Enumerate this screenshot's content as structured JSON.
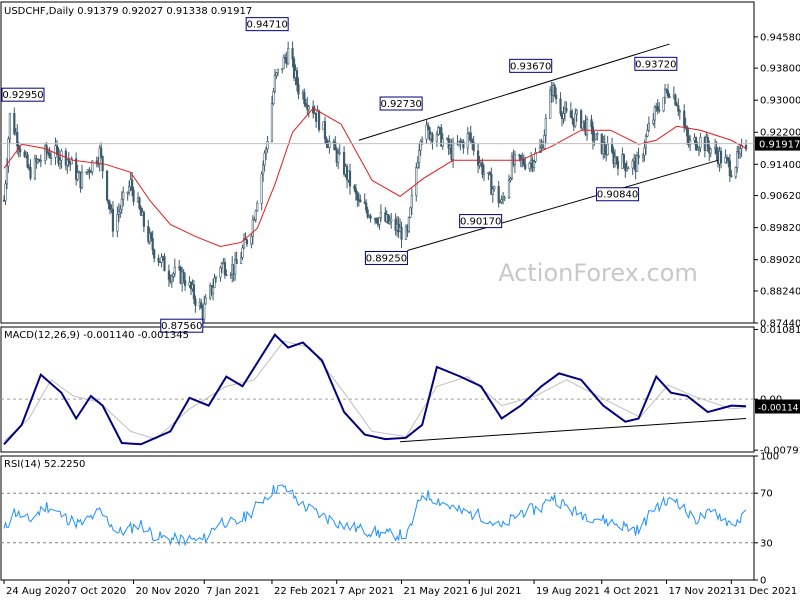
{
  "chart_data": [
    {
      "type": "candlestick",
      "panel": "price",
      "header": "USDCHF,Daily  0.91379 0.92027 0.91338 0.91917",
      "ylim": [
        0.8744,
        0.9545
      ],
      "y_ticks": [
        "0.94580",
        "0.93800",
        "0.93000",
        "0.92200",
        "0.91400",
        "0.90620",
        "0.89820",
        "0.89020",
        "0.88240",
        "0.87440"
      ],
      "last_price": "0.91917",
      "watermark": "ActionForex.com",
      "price_labels": [
        {
          "text": "0.92950",
          "date": "2020-08-26",
          "value": 0.9295
        },
        {
          "text": "0.94710",
          "date": "2021-03-05",
          "value": 0.9471
        },
        {
          "text": "0.87560",
          "date": "2021-01-06",
          "value": 0.8756
        },
        {
          "text": "0.92730",
          "date": "2021-06-04",
          "value": 0.9273
        },
        {
          "text": "0.89250",
          "date": "2021-05-25",
          "value": 0.8925
        },
        {
          "text": "0.90170",
          "date": "2021-07-28",
          "value": 0.9017
        },
        {
          "text": "0.93670",
          "date": "2021-08-31",
          "value": 0.9367
        },
        {
          "text": "0.90840",
          "date": "2021-10-29",
          "value": 0.9084
        },
        {
          "text": "0.93720",
          "date": "2021-11-24",
          "value": 0.9372
        }
      ],
      "channel_upper": [
        [
          "2021-04-22",
          0.92
        ],
        [
          "2021-11-19",
          0.944
        ]
      ],
      "channel_lower": [
        [
          "2021-05-25",
          0.8925
        ],
        [
          "2021-12-22",
          0.915
        ]
      ],
      "colors": {
        "candles": "#3d5a6b",
        "moving_average": "#e31a1c",
        "trendline": "#000000",
        "label_border": "#000080",
        "last_price_bg": "#000000"
      },
      "close_path": [
        [
          "2020-08-24",
          0.905
        ],
        [
          "2020-08-28",
          0.926
        ],
        [
          "2020-09-10",
          0.912
        ],
        [
          "2020-09-22",
          0.917
        ],
        [
          "2020-10-05",
          0.916
        ],
        [
          "2020-10-15",
          0.91
        ],
        [
          "2020-10-28",
          0.917
        ],
        [
          "2020-11-06",
          0.899
        ],
        [
          "2020-11-18",
          0.909
        ],
        [
          "2020-11-26",
          0.9
        ],
        [
          "2020-12-03",
          0.893
        ],
        [
          "2020-12-14",
          0.887
        ],
        [
          "2020-12-24",
          0.886
        ],
        [
          "2021-01-06",
          0.877
        ],
        [
          "2021-01-18",
          0.889
        ],
        [
          "2021-01-28",
          0.888
        ],
        [
          "2021-02-08",
          0.898
        ],
        [
          "2021-02-18",
          0.918
        ],
        [
          "2021-02-24",
          0.935
        ],
        [
          "2021-03-05",
          0.942
        ],
        [
          "2021-03-12",
          0.933
        ],
        [
          "2021-03-22",
          0.928
        ],
        [
          "2021-04-01",
          0.92
        ],
        [
          "2021-04-12",
          0.913
        ],
        [
          "2021-04-22",
          0.904
        ],
        [
          "2021-05-04",
          0.901
        ],
        [
          "2021-05-14",
          0.899
        ],
        [
          "2021-05-25",
          0.896
        ],
        [
          "2021-06-03",
          0.922
        ],
        [
          "2021-06-14",
          0.922
        ],
        [
          "2021-06-24",
          0.917
        ],
        [
          "2021-07-06",
          0.921
        ],
        [
          "2021-07-16",
          0.912
        ],
        [
          "2021-07-28",
          0.904
        ],
        [
          "2021-08-04",
          0.914
        ],
        [
          "2021-08-17",
          0.915
        ],
        [
          "2021-08-24",
          0.918
        ],
        [
          "2021-08-31",
          0.933
        ],
        [
          "2021-09-09",
          0.926
        ],
        [
          "2021-09-20",
          0.925
        ],
        [
          "2021-09-30",
          0.92
        ],
        [
          "2021-10-11",
          0.916
        ],
        [
          "2021-10-21",
          0.914
        ],
        [
          "2021-10-29",
          0.914
        ],
        [
          "2021-11-05",
          0.923
        ],
        [
          "2021-11-12",
          0.929
        ],
        [
          "2021-11-19",
          0.933
        ],
        [
          "2021-11-24",
          0.93
        ],
        [
          "2021-12-02",
          0.919
        ],
        [
          "2021-12-10",
          0.92
        ],
        [
          "2021-12-20",
          0.917
        ],
        [
          "2021-12-31",
          0.913
        ],
        [
          "2022-01-06",
          0.916
        ],
        [
          "2022-01-10",
          0.9192
        ]
      ],
      "ma_path": [
        [
          "2020-08-24",
          0.913
        ],
        [
          "2020-09-05",
          0.919
        ],
        [
          "2020-09-20",
          0.918
        ],
        [
          "2020-10-10",
          0.915
        ],
        [
          "2020-11-01",
          0.914
        ],
        [
          "2020-11-18",
          0.912
        ],
        [
          "2020-12-01",
          0.905
        ],
        [
          "2020-12-15",
          0.899
        ],
        [
          "2021-01-01",
          0.896
        ],
        [
          "2021-01-18",
          0.8935
        ],
        [
          "2021-02-01",
          0.8945
        ],
        [
          "2021-02-12",
          0.898
        ],
        [
          "2021-02-24",
          0.909
        ],
        [
          "2021-03-08",
          0.922
        ],
        [
          "2021-03-22",
          0.928
        ],
        [
          "2021-04-10",
          0.924
        ],
        [
          "2021-05-01",
          0.91
        ],
        [
          "2021-05-20",
          0.906
        ],
        [
          "2021-06-05",
          0.9105
        ],
        [
          "2021-06-25",
          0.915
        ],
        [
          "2021-07-20",
          0.915
        ],
        [
          "2021-08-10",
          0.915
        ],
        [
          "2021-08-31",
          0.9185
        ],
        [
          "2021-09-20",
          0.9225
        ],
        [
          "2021-10-10",
          0.9225
        ],
        [
          "2021-10-29",
          0.919
        ],
        [
          "2021-11-10",
          0.92
        ],
        [
          "2021-11-24",
          0.9235
        ],
        [
          "2021-12-10",
          0.9225
        ],
        [
          "2021-12-31",
          0.92
        ],
        [
          "2022-01-10",
          0.918
        ]
      ]
    },
    {
      "type": "line",
      "panel": "macd",
      "header": "MACD(12,26,9) -0.001140 -0.001345",
      "ylim": [
        -0.0082,
        0.0112
      ],
      "y_ticks": [
        "0.010814",
        "0.00",
        "-0.00791"
      ],
      "last_values": [
        "-0.00114",
        "-0.00134"
      ],
      "colors": {
        "macd": "#000080",
        "signal": "#c0c0c0",
        "trendline": "#000000"
      },
      "trendline": [
        [
          "2021-05-20",
          -0.0066
        ],
        [
          "2022-01-10",
          -0.003
        ]
      ],
      "macd_path": [
        [
          "2020-08-24",
          -0.007
        ],
        [
          "2020-09-05",
          -0.004
        ],
        [
          "2020-09-18",
          0.0038
        ],
        [
          "2020-10-02",
          0.001
        ],
        [
          "2020-10-12",
          -0.003
        ],
        [
          "2020-10-22",
          0.0005
        ],
        [
          "2020-10-30",
          -0.001
        ],
        [
          "2020-11-12",
          -0.0068
        ],
        [
          "2020-11-25",
          -0.007
        ],
        [
          "2020-12-05",
          -0.006
        ],
        [
          "2020-12-15",
          -0.005
        ],
        [
          "2020-12-28",
          0.0002
        ],
        [
          "2021-01-10",
          -0.001
        ],
        [
          "2021-01-22",
          0.0035
        ],
        [
          "2021-02-02",
          0.002
        ],
        [
          "2021-02-24",
          0.01
        ],
        [
          "2021-03-05",
          0.008
        ],
        [
          "2021-03-15",
          0.0088
        ],
        [
          "2021-03-28",
          0.006
        ],
        [
          "2021-04-12",
          -0.002
        ],
        [
          "2021-04-26",
          -0.0055
        ],
        [
          "2021-05-10",
          -0.0062
        ],
        [
          "2021-05-24",
          -0.006
        ],
        [
          "2021-06-04",
          -0.004
        ],
        [
          "2021-06-14",
          0.005
        ],
        [
          "2021-06-30",
          0.0035
        ],
        [
          "2021-07-14",
          0.002
        ],
        [
          "2021-07-28",
          -0.003
        ],
        [
          "2021-08-10",
          -0.001
        ],
        [
          "2021-08-24",
          0.002
        ],
        [
          "2021-09-05",
          0.004
        ],
        [
          "2021-09-20",
          0.003
        ],
        [
          "2021-10-05",
          -0.001
        ],
        [
          "2021-10-20",
          -0.0035
        ],
        [
          "2021-10-29",
          -0.003
        ],
        [
          "2021-11-10",
          0.0035
        ],
        [
          "2021-11-20",
          0.001
        ],
        [
          "2021-12-01",
          0.0005
        ],
        [
          "2021-12-15",
          -0.002
        ],
        [
          "2021-12-31",
          -0.001
        ],
        [
          "2022-01-10",
          -0.0011
        ]
      ],
      "signal_path": [
        [
          "2020-08-24",
          -0.0065
        ],
        [
          "2020-09-10",
          -0.003
        ],
        [
          "2020-09-25",
          0.003
        ],
        [
          "2020-10-10",
          0.0005
        ],
        [
          "2020-10-28",
          -0.0005
        ],
        [
          "2020-11-18",
          -0.005
        ],
        [
          "2020-12-05",
          -0.0062
        ],
        [
          "2020-12-28",
          -0.0015
        ],
        [
          "2021-01-22",
          0.002
        ],
        [
          "2021-02-10",
          0.003
        ],
        [
          "2021-03-02",
          0.009
        ],
        [
          "2021-03-20",
          0.008
        ],
        [
          "2021-04-12",
          0.001
        ],
        [
          "2021-05-01",
          -0.005
        ],
        [
          "2021-05-24",
          -0.0058
        ],
        [
          "2021-06-14",
          0.002
        ],
        [
          "2021-07-05",
          0.0035
        ],
        [
          "2021-07-28",
          -0.001
        ],
        [
          "2021-08-20",
          0.0005
        ],
        [
          "2021-09-10",
          0.003
        ],
        [
          "2021-10-10",
          -0.0005
        ],
        [
          "2021-10-30",
          -0.0028
        ],
        [
          "2021-11-18",
          0.0022
        ],
        [
          "2021-12-05",
          0.0005
        ],
        [
          "2021-12-31",
          -0.0015
        ],
        [
          "2022-01-10",
          -0.0013
        ]
      ]
    },
    {
      "type": "line",
      "panel": "rsi",
      "header": "RSI(14) 52.2250",
      "ylim": [
        0,
        100
      ],
      "y_ticks": [
        "100",
        "70",
        "30",
        "0"
      ],
      "levels": [
        70,
        30
      ],
      "colors": {
        "rsi": "#1e90ff",
        "levels": "#808080"
      },
      "x_labels": [
        "24 Aug 2020",
        "7 Oct 2020",
        "20 Nov 2020",
        "7 Jan 2021",
        "22 Feb 2021",
        "7 Apr 2021",
        "21 May 2021",
        "6 Jul 2021",
        "19 Aug 2021",
        "4 Oct 2021",
        "17 Nov 2021",
        "31 Dec 2021"
      ],
      "rsi_path": [
        [
          "2020-08-24",
          40
        ],
        [
          "2020-08-31",
          55
        ],
        [
          "2020-09-10",
          48
        ],
        [
          "2020-09-22",
          60
        ],
        [
          "2020-10-05",
          50
        ],
        [
          "2020-10-15",
          45
        ],
        [
          "2020-10-28",
          55
        ],
        [
          "2020-11-10",
          38
        ],
        [
          "2020-11-25",
          45
        ],
        [
          "2020-12-05",
          35
        ],
        [
          "2020-12-15",
          33
        ],
        [
          "2021-01-06",
          32
        ],
        [
          "2021-01-18",
          48
        ],
        [
          "2021-01-28",
          45
        ],
        [
          "2021-02-08",
          55
        ],
        [
          "2021-02-18",
          68
        ],
        [
          "2021-02-26",
          75
        ],
        [
          "2021-03-05",
          72
        ],
        [
          "2021-03-15",
          60
        ],
        [
          "2021-03-28",
          52
        ],
        [
          "2021-04-12",
          44
        ],
        [
          "2021-04-26",
          40
        ],
        [
          "2021-05-10",
          37
        ],
        [
          "2021-05-25",
          36
        ],
        [
          "2021-06-04",
          70
        ],
        [
          "2021-06-14",
          65
        ],
        [
          "2021-06-30",
          55
        ],
        [
          "2021-07-14",
          52
        ],
        [
          "2021-07-28",
          42
        ],
        [
          "2021-08-10",
          55
        ],
        [
          "2021-08-24",
          58
        ],
        [
          "2021-08-31",
          68
        ],
        [
          "2021-09-15",
          55
        ],
        [
          "2021-10-01",
          50
        ],
        [
          "2021-10-15",
          45
        ],
        [
          "2021-10-29",
          40
        ],
        [
          "2021-11-10",
          60
        ],
        [
          "2021-11-24",
          65
        ],
        [
          "2021-12-05",
          48
        ],
        [
          "2021-12-20",
          55
        ],
        [
          "2021-12-31",
          45
        ],
        [
          "2022-01-10",
          52
        ]
      ]
    }
  ]
}
